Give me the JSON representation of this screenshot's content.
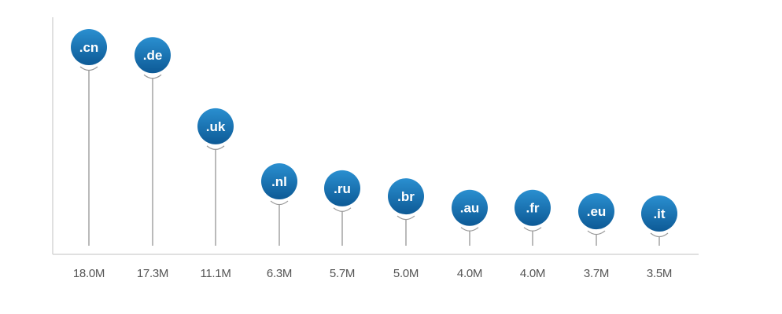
{
  "chart_data": {
    "type": "lollipop",
    "categories": [
      ".cn",
      ".de",
      ".uk",
      ".nl",
      ".ru",
      ".br",
      ".au",
      ".fr",
      ".eu",
      ".it"
    ],
    "values": [
      18.0,
      17.3,
      11.1,
      6.3,
      5.7,
      5.0,
      4.0,
      4.0,
      3.7,
      3.5
    ],
    "value_labels": [
      "18.0M",
      "17.3M",
      "11.1M",
      "6.3M",
      "5.7M",
      "5.0M",
      "4.0M",
      "4.0M",
      "3.7M",
      "3.5M"
    ],
    "title": "",
    "xlabel": "",
    "ylabel": "",
    "grid": false,
    "colors": {
      "bubble_top": "#2a8fd0",
      "bubble_bottom": "#0d5a96",
      "stem": "#8c8c8c",
      "axis": "#d6d6d6",
      "text": "#555555"
    }
  }
}
